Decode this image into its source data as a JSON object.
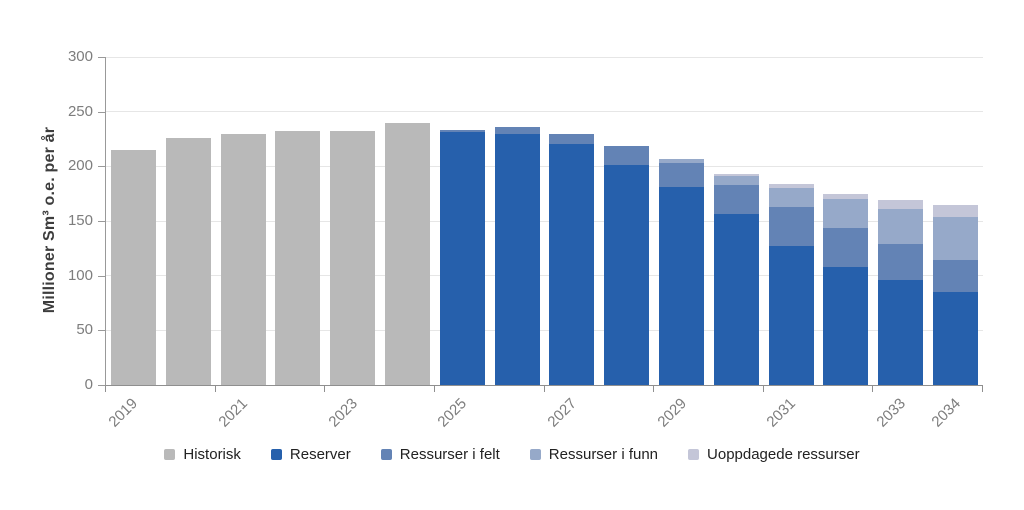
{
  "chart_data": {
    "type": "bar",
    "stacked": true,
    "title": "",
    "xlabel": "",
    "ylabel": "Millioner Sm³ o.e. per år",
    "ylim": [
      0,
      300
    ],
    "yticks": [
      0,
      50,
      100,
      150,
      200,
      250,
      300
    ],
    "grid": true,
    "legend_position": "bottom",
    "categories": [
      "2019",
      "2020",
      "2021",
      "2022",
      "2023",
      "2024",
      "2025",
      "2026",
      "2027",
      "2028",
      "2029",
      "2030",
      "2031",
      "2032",
      "2033",
      "2034"
    ],
    "xtick_labeled_indexes": [
      0,
      2,
      4,
      6,
      8,
      10,
      12,
      14,
      15
    ],
    "series": [
      {
        "name": "Historisk",
        "color": "#b9b9b9",
        "values": [
          215,
          226,
          230,
          232,
          232,
          240,
          0,
          0,
          0,
          0,
          0,
          0,
          0,
          0,
          0,
          0
        ]
      },
      {
        "name": "Reserver",
        "color": "#2660ac",
        "values": [
          0,
          0,
          0,
          0,
          0,
          0,
          231,
          230,
          220,
          201,
          181,
          156,
          127,
          108,
          96,
          85
        ]
      },
      {
        "name": "Ressurser i felt",
        "color": "#6383b5",
        "values": [
          0,
          0,
          0,
          0,
          0,
          0,
          2,
          6,
          10,
          18,
          22,
          27,
          36,
          36,
          33,
          29
        ]
      },
      {
        "name": "Ressurser i funn",
        "color": "#96a9c9",
        "values": [
          0,
          0,
          0,
          0,
          0,
          0,
          0,
          0,
          0,
          0,
          4,
          8,
          17,
          26,
          32,
          40
        ]
      },
      {
        "name": "Uoppdagede ressurser",
        "color": "#c4c6d8",
        "values": [
          0,
          0,
          0,
          0,
          0,
          0,
          0,
          0,
          0,
          0,
          0,
          2,
          4,
          5,
          8,
          11
        ]
      }
    ]
  },
  "colors": {
    "background": "#ffffff",
    "grid": "#e6e6e6",
    "axis_y": "#999999",
    "axis_x": "#8f8f8f",
    "tick_label": "#7d7d7d",
    "axis_title": "#3d3d3d",
    "legend_text": "#222222"
  }
}
